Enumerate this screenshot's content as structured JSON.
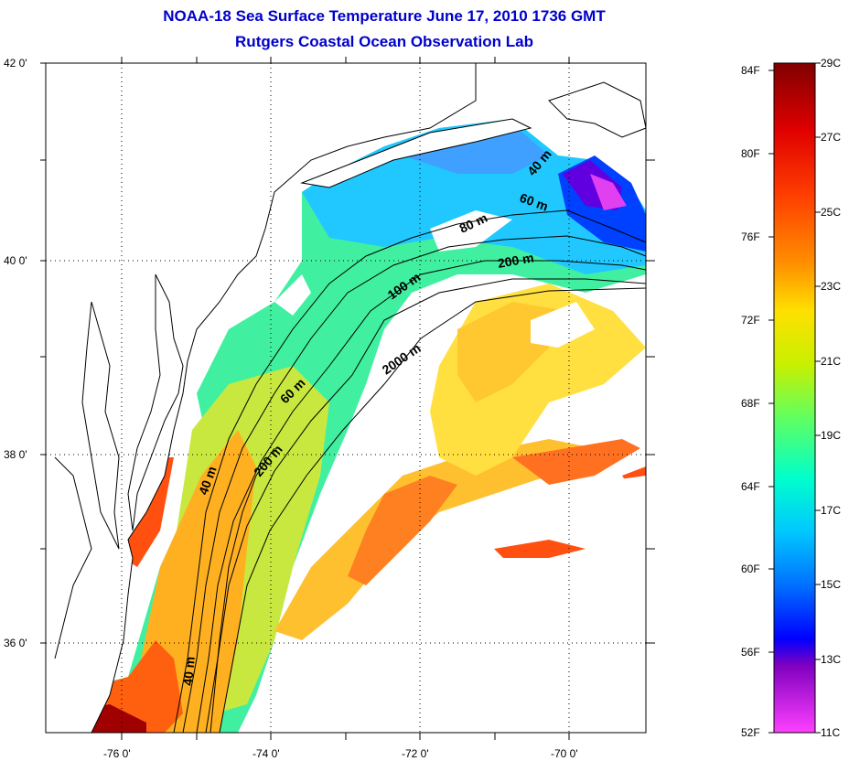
{
  "title": {
    "line1": "NOAA-18 Sea Surface Temperature June 17, 2010 1736 GMT",
    "line2": "Rutgers Coastal Ocean Observation Lab"
  },
  "map": {
    "lat_labels": [
      "42 0'",
      "40 0'",
      "38 0'",
      "36 0'"
    ],
    "lon_labels": [
      "-76 0'",
      "-74 0'",
      "-72 0'",
      "-70 0'"
    ],
    "contour_labels": [
      "40 m",
      "60 m",
      "80 m",
      "200 m",
      "100 m",
      "2000 m",
      "60 m",
      "40 m",
      "200 m",
      "40 m"
    ],
    "land_color": "#ffffff",
    "coast_color": "#000000"
  },
  "colorbar": {
    "f_labels": [
      "84F",
      "80F",
      "76F",
      "72F",
      "68F",
      "64F",
      "60F",
      "56F",
      "52F"
    ],
    "c_labels": [
      "29C",
      "27C",
      "25C",
      "23C",
      "21C",
      "19C",
      "17C",
      "15C",
      "13C",
      "11C"
    ],
    "stops": [
      "#800000",
      "#e00000",
      "#ff4000",
      "#ff9000",
      "#ffe000",
      "#c8f000",
      "#60ff60",
      "#00ffcc",
      "#00c8ff",
      "#0070ff",
      "#0000ff",
      "#8000c0",
      "#ff40ff"
    ]
  }
}
